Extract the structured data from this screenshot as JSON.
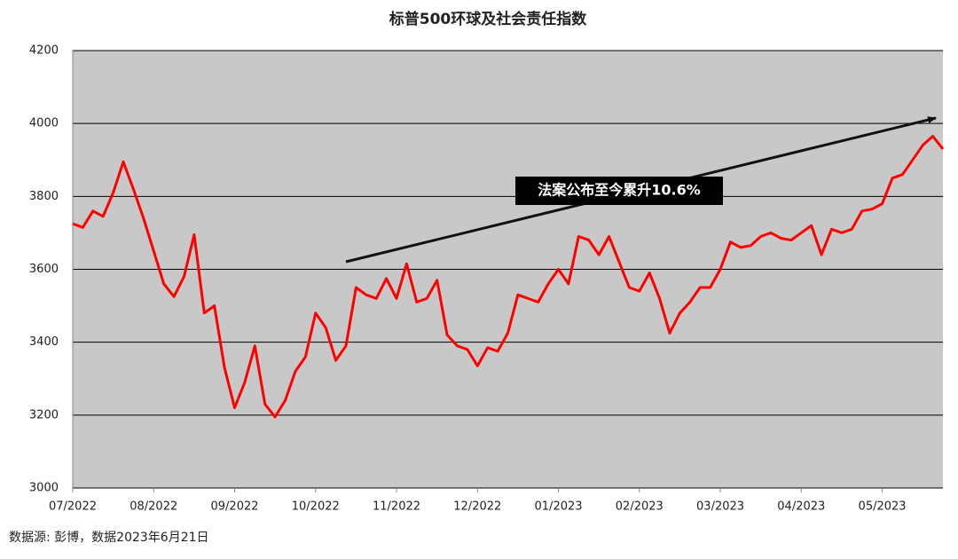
{
  "chart_data": {
    "type": "line",
    "title": "标普500环球及社会责任指数",
    "categories": [
      "07/2022",
      null,
      null,
      null,
      null,
      null,
      null,
      null,
      "08/2022",
      null,
      null,
      null,
      null,
      null,
      null,
      null,
      "09/2022",
      null,
      null,
      null,
      null,
      null,
      null,
      null,
      "10/2022",
      null,
      null,
      null,
      null,
      null,
      null,
      null,
      "11/2022",
      null,
      null,
      null,
      null,
      null,
      null,
      null,
      "12/2022",
      null,
      null,
      null,
      null,
      null,
      null,
      null,
      "01/2023",
      null,
      null,
      null,
      null,
      null,
      null,
      null,
      "02/2023",
      null,
      null,
      null,
      null,
      null,
      null,
      null,
      "03/2023",
      null,
      null,
      null,
      null,
      null,
      null,
      null,
      "04/2023",
      null,
      null,
      null,
      null,
      null,
      null,
      null,
      "05/2023",
      null,
      null,
      null,
      null,
      null,
      null
    ],
    "values": [
      3725,
      3715,
      3760,
      3745,
      3810,
      3895,
      3820,
      3740,
      3650,
      3560,
      3525,
      3580,
      3695,
      3480,
      3500,
      3330,
      3220,
      3290,
      3390,
      3230,
      3195,
      3240,
      3320,
      3360,
      3480,
      3440,
      3350,
      3390,
      3550,
      3530,
      3520,
      3575,
      3520,
      3615,
      3510,
      3520,
      3570,
      3420,
      3390,
      3380,
      3335,
      3385,
      3375,
      3425,
      3530,
      3520,
      3510,
      3560,
      3600,
      3560,
      3690,
      3680,
      3640,
      3690,
      3620,
      3550,
      3540,
      3590,
      3520,
      3425,
      3480,
      3510,
      3550,
      3550,
      3600,
      3675,
      3660,
      3665,
      3690,
      3700,
      3685,
      3680,
      3700,
      3720,
      3640,
      3710,
      3700,
      3710,
      3760,
      3765,
      3780,
      3850,
      3860,
      3900,
      3940,
      3965,
      3930
    ],
    "color": "#ff0000",
    "ylim": [
      3000,
      4200
    ],
    "yticks": [
      3000,
      3200,
      3400,
      3600,
      3800,
      4000,
      4200
    ],
    "grid": true,
    "annotation": "法案公布至今累升10.6%",
    "source": "数据源: 彭博，数据2023年6月21日"
  }
}
